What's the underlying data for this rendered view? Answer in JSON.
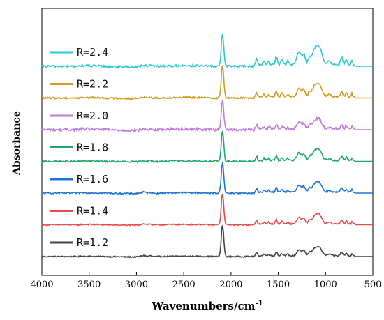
{
  "chart_data": {
    "type": "line",
    "xlabel": "Wavenumbers/cm",
    "xlabel_superscript": "-1",
    "ylabel": "Absorbance",
    "xlim": [
      4000,
      500
    ],
    "x_reversed": true,
    "x_ticks": [
      4000,
      3500,
      3000,
      2500,
      2000,
      1500,
      1000,
      500
    ],
    "y_ticks_shown": false,
    "grid": false,
    "legend_placement": "inline-left, next to each curve",
    "series": [
      {
        "name": "R=1.2",
        "color": "#444444",
        "peak_absorbance": 0.95,
        "fine_structure": 0.5,
        "baseline_noise": 0.25,
        "offset": 0
      },
      {
        "name": "R=1.4",
        "color": "#e84a4a",
        "peak_absorbance": 0.95,
        "fine_structure": 0.55,
        "baseline_noise": 0.25,
        "offset": 1
      },
      {
        "name": "R=1.6",
        "color": "#1c73d8",
        "peak_absorbance": 0.92,
        "fine_structure": 0.6,
        "baseline_noise": 0.3,
        "offset": 2
      },
      {
        "name": "R=1.8",
        "color": "#20a86b",
        "peak_absorbance": 0.92,
        "fine_structure": 0.65,
        "baseline_noise": 0.35,
        "offset": 3
      },
      {
        "name": "R=2.0",
        "color": "#c07ae0",
        "peak_absorbance": 0.9,
        "fine_structure": 0.6,
        "baseline_noise": 0.55,
        "offset": 4
      },
      {
        "name": "R=2.2",
        "color": "#d49a1e",
        "peak_absorbance": 1.0,
        "fine_structure": 0.7,
        "baseline_noise": 0.35,
        "offset": 5
      },
      {
        "name": "R=2.4",
        "color": "#2ec9cf",
        "peak_absorbance": 1.0,
        "fine_structure": 1.0,
        "baseline_noise": 0.45,
        "offset": 6
      }
    ]
  }
}
